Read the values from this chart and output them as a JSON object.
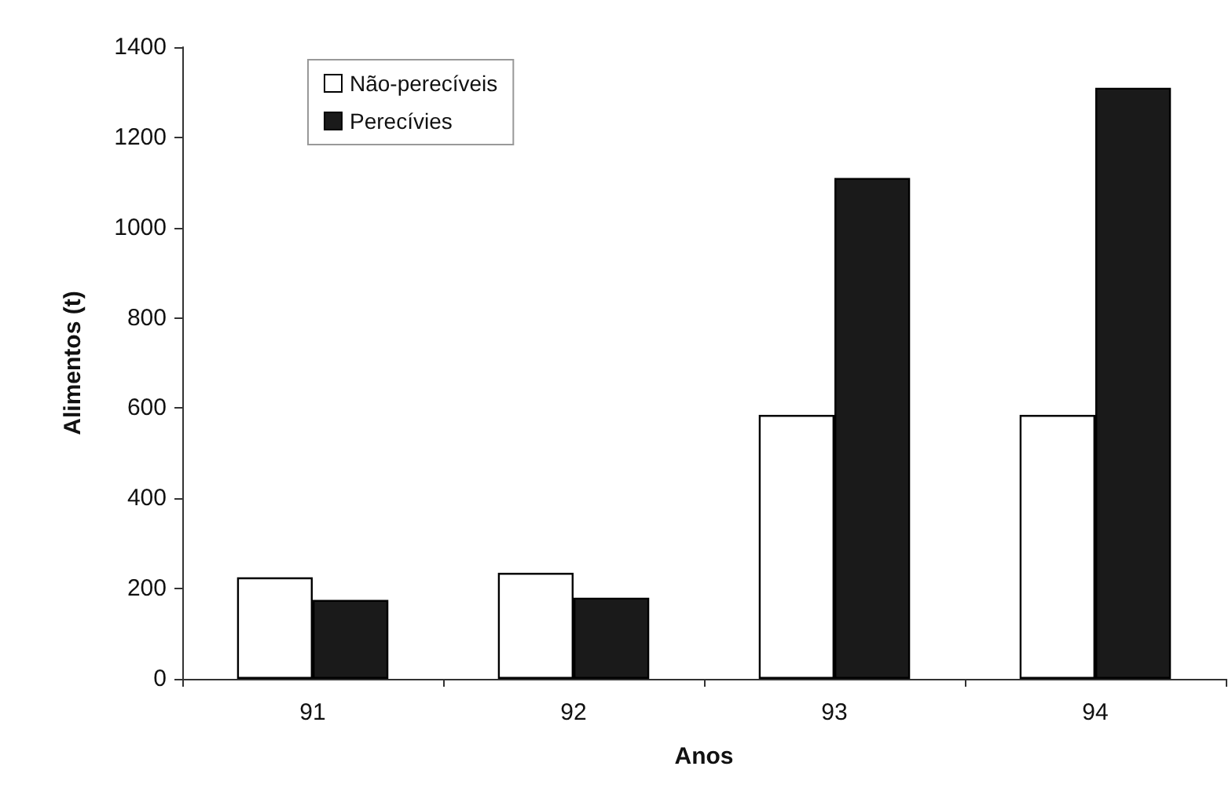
{
  "chart_data": {
    "type": "bar",
    "xlabel": "Anos",
    "ylabel": "Alimentos (t)",
    "categories": [
      "91",
      "92",
      "93",
      "94"
    ],
    "series": [
      {
        "name": "Não-perecíveis",
        "color": "#ffffff",
        "values": [
          225,
          235,
          585,
          585
        ]
      },
      {
        "name": "Perecívies",
        "color": "#1a1a1a",
        "values": [
          175,
          180,
          1110,
          1310
        ]
      }
    ],
    "ylim": [
      0,
      1400
    ],
    "yticks": [
      0,
      200,
      400,
      600,
      800,
      1000,
      1200,
      1400
    ],
    "grid": false,
    "legend": "top left"
  }
}
